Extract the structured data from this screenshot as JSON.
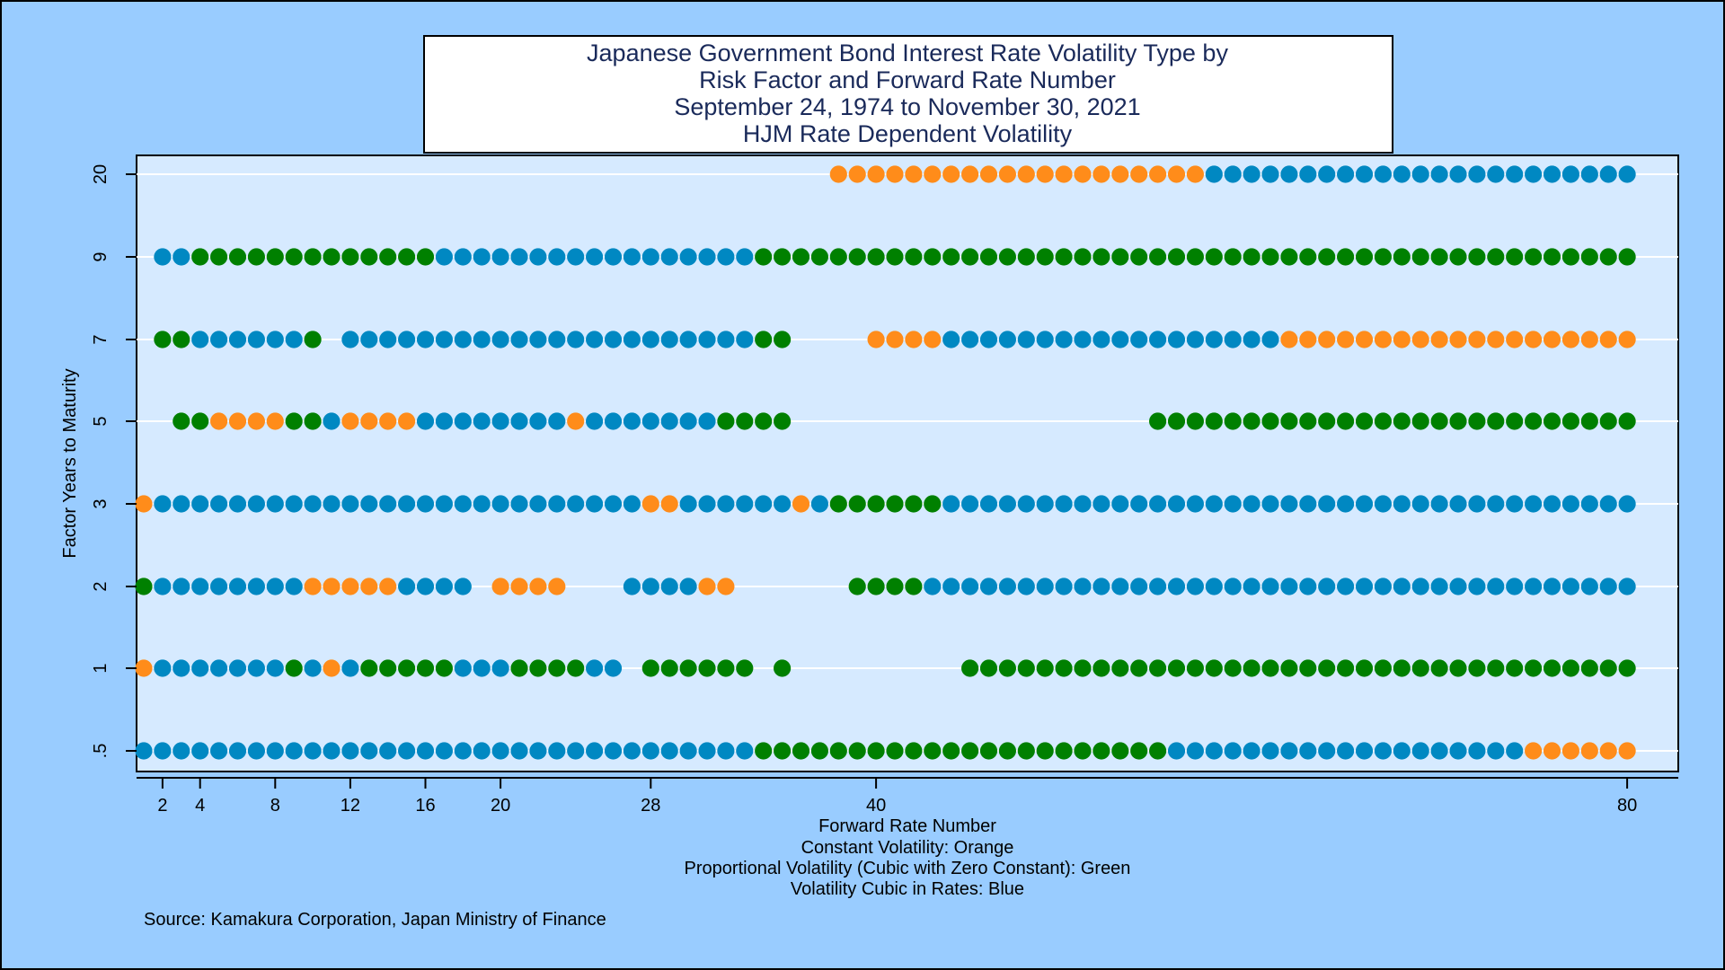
{
  "chart_data": {
    "type": "scatter",
    "title_lines": [
      "Japanese Government Bond Interest Rate Volatility Type by",
      "Risk Factor and Forward Rate Number",
      "September 24, 1974 to November 30, 2021",
      "HJM Rate Dependent Volatility"
    ],
    "xlabel": "Forward Rate Number",
    "ylabel": "Factor Years to Maturity",
    "legend_lines": [
      "Constant Volatility: Orange",
      "Proportional Volatility (Cubic with Zero Constant): Green",
      "Volatility Cubic in Rates: Blue"
    ],
    "source": "Source: Kamakura Corporation, Japan Ministry of Finance",
    "xlim": [
      0,
      81
    ],
    "x_ticks": [
      2,
      4,
      8,
      12,
      16,
      20,
      28,
      40,
      80
    ],
    "x_tick_labels": [
      "2",
      "4",
      "8",
      "12",
      "16",
      "20",
      "28",
      "40",
      "80"
    ],
    "y_tick_labels": [
      ".5",
      "1",
      "2",
      "3",
      "5",
      "7",
      "9",
      "20"
    ],
    "grid": "horizontal",
    "colors": {
      "orange": "#ff8c1a",
      "green": "#008000",
      "blue": "#0088c2",
      "plot_bg": "#d6eaff",
      "page_bg": "#99ccff"
    },
    "series": [
      {
        "factor": ".5",
        "runs": [
          [
            1,
            33,
            "blue"
          ],
          [
            34,
            55,
            "green"
          ],
          [
            56,
            74,
            "blue"
          ],
          [
            75,
            80,
            "orange"
          ]
        ]
      },
      {
        "factor": "1",
        "runs": [
          [
            1,
            1,
            "orange"
          ],
          [
            2,
            8,
            "blue"
          ],
          [
            9,
            9,
            "green"
          ],
          [
            10,
            10,
            "blue"
          ],
          [
            11,
            11,
            "orange"
          ],
          [
            12,
            12,
            "blue"
          ],
          [
            13,
            17,
            "green"
          ],
          [
            18,
            20,
            "blue"
          ],
          [
            21,
            24,
            "green"
          ],
          [
            25,
            26,
            "blue"
          ],
          [
            28,
            33,
            "green"
          ],
          [
            35,
            35,
            "green"
          ],
          [
            45,
            80,
            "green"
          ]
        ]
      },
      {
        "factor": "2",
        "runs": [
          [
            1,
            1,
            "green"
          ],
          [
            2,
            9,
            "blue"
          ],
          [
            10,
            14,
            "orange"
          ],
          [
            15,
            18,
            "blue"
          ],
          [
            20,
            23,
            "orange"
          ],
          [
            27,
            30,
            "blue"
          ],
          [
            31,
            32,
            "orange"
          ],
          [
            39,
            42,
            "green"
          ],
          [
            43,
            80,
            "blue"
          ]
        ]
      },
      {
        "factor": "3",
        "runs": [
          [
            1,
            1,
            "orange"
          ],
          [
            2,
            27,
            "blue"
          ],
          [
            28,
            29,
            "orange"
          ],
          [
            30,
            35,
            "blue"
          ],
          [
            36,
            36,
            "orange"
          ],
          [
            37,
            37,
            "blue"
          ],
          [
            38,
            43,
            "green"
          ],
          [
            44,
            80,
            "blue"
          ]
        ]
      },
      {
        "factor": "5",
        "runs": [
          [
            3,
            4,
            "green"
          ],
          [
            5,
            8,
            "orange"
          ],
          [
            9,
            10,
            "green"
          ],
          [
            11,
            11,
            "blue"
          ],
          [
            12,
            15,
            "orange"
          ],
          [
            16,
            23,
            "blue"
          ],
          [
            24,
            24,
            "orange"
          ],
          [
            25,
            31,
            "blue"
          ],
          [
            32,
            35,
            "green"
          ],
          [
            55,
            80,
            "green"
          ]
        ]
      },
      {
        "factor": "7",
        "runs": [
          [
            2,
            3,
            "green"
          ],
          [
            4,
            9,
            "blue"
          ],
          [
            10,
            10,
            "green"
          ],
          [
            12,
            33,
            "blue"
          ],
          [
            34,
            35,
            "green"
          ],
          [
            40,
            43,
            "orange"
          ],
          [
            44,
            61,
            "blue"
          ],
          [
            62,
            80,
            "orange"
          ]
        ]
      },
      {
        "factor": "9",
        "runs": [
          [
            2,
            3,
            "blue"
          ],
          [
            4,
            16,
            "green"
          ],
          [
            17,
            33,
            "blue"
          ],
          [
            34,
            80,
            "green"
          ]
        ]
      },
      {
        "factor": "20",
        "runs": [
          [
            38,
            57,
            "orange"
          ],
          [
            58,
            80,
            "blue"
          ]
        ]
      }
    ]
  }
}
